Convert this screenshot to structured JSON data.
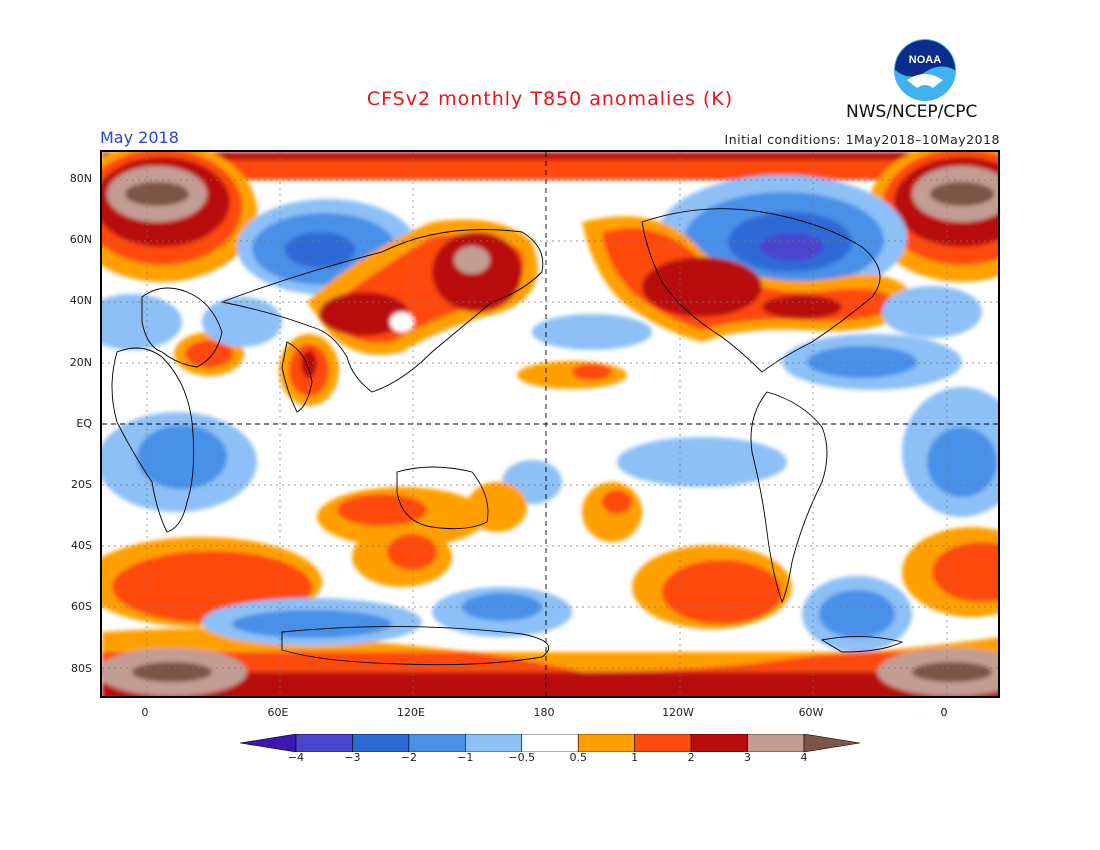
{
  "header": {
    "title": "CFSv2 monthly T850 anomalies (K)",
    "agency": "NWS/NCEP/CPC",
    "month": "May 2018",
    "initial_conditions": "Initial conditions: 1May2018–10May2018"
  },
  "logo": {
    "text": "NOAA"
  },
  "map": {
    "lat_labels": [
      "80N",
      "60N",
      "40N",
      "20N",
      "EQ",
      "20S",
      "40S",
      "60S",
      "80S"
    ],
    "lon_labels": [
      "0",
      "60E",
      "120E",
      "180",
      "120W",
      "60W",
      "0"
    ]
  },
  "colorbar": {
    "labels": [
      "−4",
      "−3",
      "−2",
      "−1",
      "−0.5",
      "0.5",
      "1",
      "2",
      "3",
      "4"
    ],
    "colors": [
      "#3d17b4",
      "#4a45cf",
      "#2e6ad6",
      "#4a90e8",
      "#8cc0f6",
      "#ffffff",
      "#ffa000",
      "#ff4a10",
      "#b90c0c",
      "#c29d93",
      "#7d5446"
    ]
  }
}
